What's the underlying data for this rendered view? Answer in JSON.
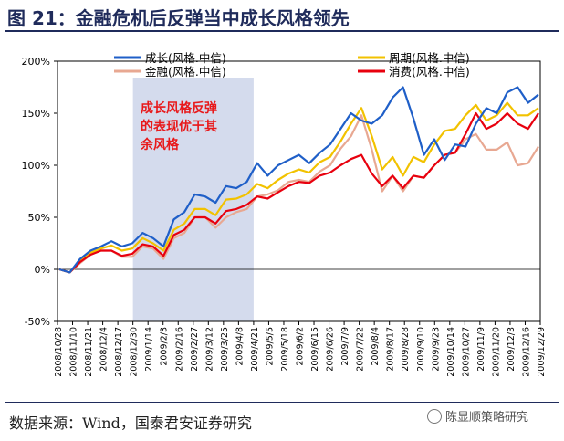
{
  "header": {
    "title": "图 21：金融危机后反弹当中成长风格领先"
  },
  "footer": {
    "source": "数据来源：Wind，国泰君安证券研究",
    "watermark": "陈显顺策略研究",
    "watermark_icon": "wechat-icon"
  },
  "chart_data": {
    "type": "line",
    "title": "",
    "xlabel": "",
    "ylabel": "",
    "ylim": [
      -50,
      200
    ],
    "y_ticks": [
      "-50%",
      "0%",
      "50%",
      "100%",
      "150%",
      "200%"
    ],
    "y_tick_values": [
      -50,
      0,
      50,
      100,
      150,
      200
    ],
    "x_ticks": [
      "2008/10/28",
      "2008/11/10",
      "2008/11/21",
      "2008/12/4",
      "2008/12/17",
      "2008/12/30",
      "2009/1/14",
      "2009/2/3",
      "2009/2/16",
      "2009/2/27",
      "2009/3/12",
      "2009/3/25",
      "2009/4/8",
      "2009/4/21",
      "2009/5/5",
      "2009/5/18",
      "2009/6/2",
      "2009/6/15",
      "2009/6/26",
      "2009/7/9",
      "2009/7/22",
      "2009/8/4",
      "2009/8/17",
      "2009/8/28",
      "2009/9/10",
      "2009/9/23",
      "2009/10/14",
      "2009/10/27",
      "2009/11/9",
      "2009/11/20",
      "2009/12/3",
      "2009/12/16",
      "2009/12/29"
    ],
    "grid": false,
    "legend": "top",
    "highlight": {
      "from": "2008/12/30",
      "to": "2009/4/21",
      "color": "#cdd5ea"
    },
    "annotation": {
      "text": [
        "成长风格反弹",
        "的表现优于其",
        "余风格"
      ],
      "color": "#e8191b"
    },
    "series": [
      {
        "name": "成长(风格.中信)",
        "color": "#1f5fc8",
        "values": [
          0,
          -3,
          10,
          18,
          22,
          27,
          22,
          25,
          35,
          30,
          22,
          48,
          55,
          72,
          70,
          64,
          80,
          78,
          84,
          102,
          90,
          100,
          105,
          110,
          102,
          112,
          120,
          135,
          150,
          143,
          140,
          148,
          165,
          175,
          145,
          110,
          125,
          105,
          120,
          118,
          140,
          155,
          150,
          170,
          175,
          160,
          168
        ]
      },
      {
        "name": "周期(风格.中信)",
        "color": "#f2c200",
        "values": [
          0,
          -3,
          8,
          16,
          20,
          23,
          18,
          20,
          30,
          25,
          18,
          38,
          44,
          58,
          58,
          52,
          67,
          68,
          72,
          82,
          78,
          86,
          92,
          96,
          93,
          103,
          108,
          123,
          140,
          155,
          128,
          96,
          108,
          90,
          108,
          103,
          120,
          133,
          135,
          148,
          158,
          143,
          148,
          160,
          148,
          148,
          155
        ]
      },
      {
        "name": "金融(风格.中信)",
        "color": "#e8a892",
        "values": [
          0,
          -3,
          6,
          14,
          18,
          18,
          12,
          12,
          22,
          20,
          10,
          30,
          35,
          50,
          50,
          40,
          50,
          55,
          58,
          70,
          72,
          76,
          84,
          86,
          84,
          94,
          100,
          116,
          128,
          148,
          115,
          75,
          90,
          75,
          90,
          88,
          100,
          110,
          112,
          125,
          130,
          115,
          115,
          122,
          100,
          102,
          118
        ]
      },
      {
        "name": "消费(风格.中信)",
        "color": "#e8000e",
        "values": [
          0,
          -3,
          7,
          14,
          18,
          18,
          13,
          15,
          24,
          22,
          13,
          33,
          38,
          50,
          50,
          44,
          56,
          58,
          62,
          70,
          68,
          74,
          80,
          84,
          83,
          90,
          93,
          100,
          106,
          110,
          92,
          80,
          90,
          78,
          90,
          88,
          100,
          110,
          112,
          130,
          150,
          135,
          140,
          150,
          140,
          135,
          150
        ]
      }
    ]
  }
}
